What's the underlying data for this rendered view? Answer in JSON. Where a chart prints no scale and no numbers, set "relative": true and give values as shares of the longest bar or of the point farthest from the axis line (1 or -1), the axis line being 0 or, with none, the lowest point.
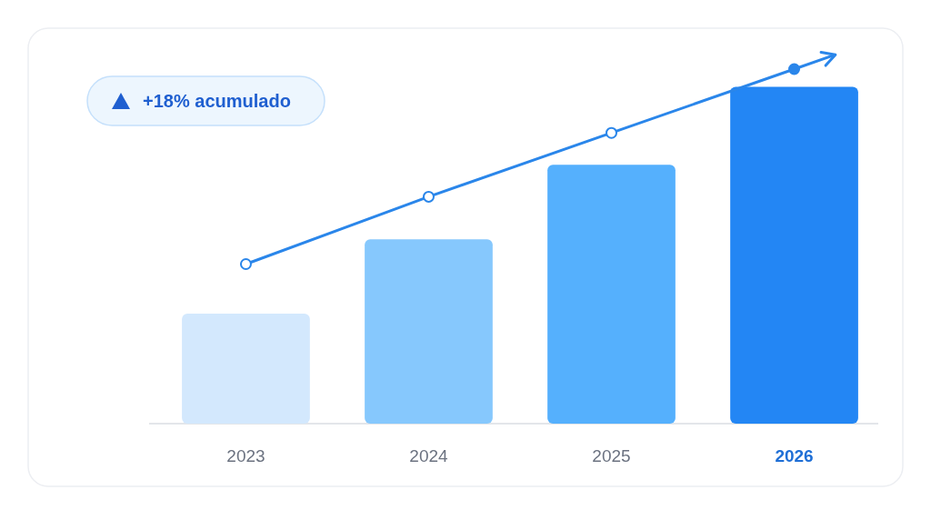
{
  "chart_data": {
    "type": "bar",
    "relative": true,
    "categories": [
      "2023",
      "2024",
      "2025",
      "2026"
    ],
    "series": [
      {
        "colors": [
          "#d3e8fd",
          "#86c8fd",
          "#55b0fd",
          "#2386f4"
        ],
        "values": [
          0.31,
          0.52,
          0.73,
          0.95
        ]
      },
      {
        "type": "line",
        "color": "#2a86ea",
        "values": [
          0.45,
          0.64,
          0.82,
          1
        ]
      }
    ],
    "marker": "circle",
    "annotations": [
      "+18% acumulado"
    ]
  }
}
